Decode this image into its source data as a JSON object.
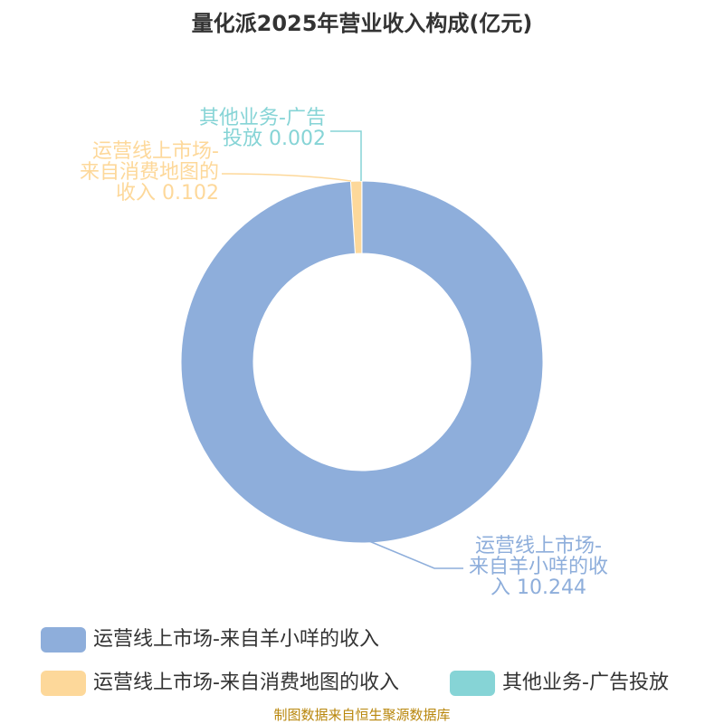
{
  "chart_data": {
    "type": "pie",
    "title": "量化派2025年营业收入构成(亿元)",
    "categories": [
      "运营线上市场-来自羊小咩的收入",
      "运营线上市场-来自消费地图的收入",
      "其他业务-广告投放"
    ],
    "values": [
      10.244,
      0.102,
      0.002
    ],
    "colors": [
      "#8eaedb",
      "#fdd89a",
      "#86d4d6"
    ],
    "source": "制图数据来自恒生聚源数据库"
  }
}
